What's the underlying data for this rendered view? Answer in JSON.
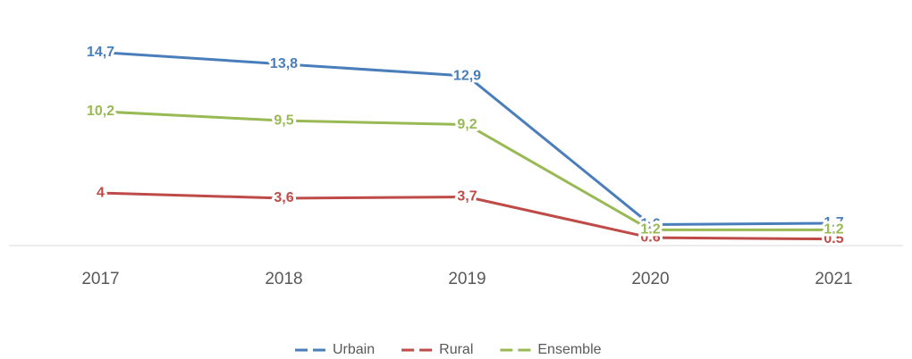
{
  "chart_data": {
    "type": "line",
    "categories": [
      "2017",
      "2018",
      "2019",
      "2020",
      "2021"
    ],
    "series": [
      {
        "name": "Urbain",
        "color": "#4a7ebb",
        "values": [
          14.7,
          13.8,
          12.9,
          1.6,
          1.7
        ],
        "value_labels": [
          "14,7",
          "13,8",
          "12,9",
          "1.6",
          "1.7"
        ]
      },
      {
        "name": "Rural",
        "color": "#be4b48",
        "values": [
          4,
          3.6,
          3.7,
          0.6,
          0.5
        ],
        "value_labels": [
          "4",
          "3,6",
          "3,7",
          "0.6",
          "0.5"
        ]
      },
      {
        "name": "Ensemble",
        "color": "#98b954",
        "values": [
          10.2,
          9.5,
          9.2,
          1.2,
          1.2
        ],
        "value_labels": [
          "10,2",
          "9,5",
          "9,2",
          "1.2",
          "1.2"
        ]
      }
    ],
    "ylim": [
      0,
      18
    ],
    "legend": "bottom"
  }
}
